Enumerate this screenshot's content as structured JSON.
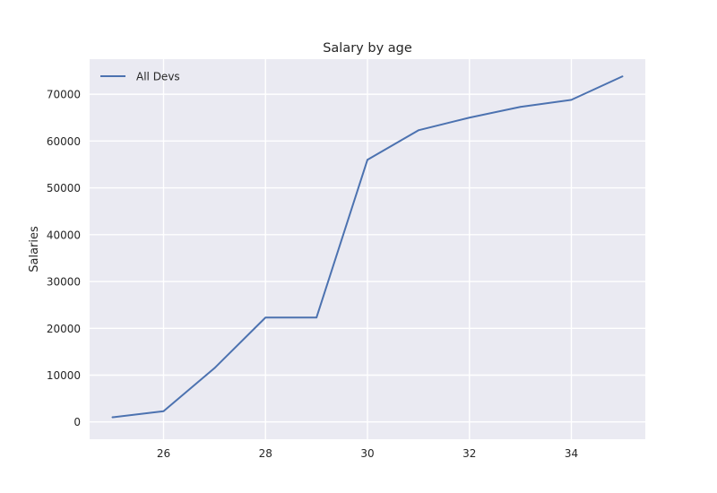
{
  "chart_data": {
    "type": "line",
    "title": "Salary by age",
    "xlabel": "",
    "ylabel": "Salaries",
    "x": [
      25,
      26,
      27,
      28,
      29,
      30,
      31,
      32,
      33,
      34,
      35
    ],
    "series": [
      {
        "name": "All Devs",
        "color": "#4c72b0",
        "values": [
          1000,
          2300,
          11500,
          22300,
          22300,
          56000,
          62300,
          65000,
          67300,
          68800,
          73800
        ]
      }
    ],
    "xlim": [
      24.55,
      35.45
    ],
    "ylim": [
      -3690,
      77490
    ],
    "xticks": [
      26,
      28,
      30,
      32,
      34
    ],
    "yticks": [
      0,
      10000,
      20000,
      30000,
      40000,
      50000,
      60000,
      70000
    ],
    "grid": true,
    "legend_position": "top-left",
    "style": {
      "plot_background": "#eaeaf2",
      "grid_color": "#ffffff"
    }
  }
}
